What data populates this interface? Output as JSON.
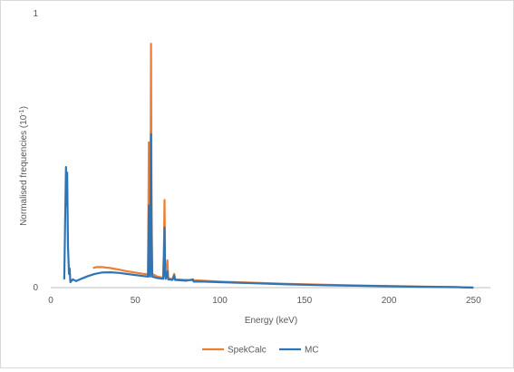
{
  "chart_data": {
    "type": "line",
    "title": "",
    "xlabel": "Energy (keV)",
    "ylabel": "Normalised frequencies (10",
    "ylabel_sup": "-1",
    "ylabel_suffix": ")",
    "xlim": [
      0,
      260
    ],
    "ylim": [
      0,
      1
    ],
    "xticks": [
      0,
      50,
      100,
      150,
      200,
      250
    ],
    "yticks": [
      0,
      1
    ],
    "grid": false,
    "legend_position": "bottom",
    "series": [
      {
        "name": "SpekCalc",
        "color": "#ed7d31",
        "points": [
          [
            25,
            0.072
          ],
          [
            27,
            0.075
          ],
          [
            30,
            0.075
          ],
          [
            35,
            0.072
          ],
          [
            40,
            0.066
          ],
          [
            45,
            0.06
          ],
          [
            50,
            0.055
          ],
          [
            55,
            0.05
          ],
          [
            57.5,
            0.048
          ],
          [
            57.8,
            0.3
          ],
          [
            58,
            0.53
          ],
          [
            58.3,
            0.2
          ],
          [
            58.7,
            0.05
          ],
          [
            59.0,
            0.4
          ],
          [
            59.3,
            0.89
          ],
          [
            59.6,
            0.3
          ],
          [
            60,
            0.05
          ],
          [
            63,
            0.04
          ],
          [
            66.5,
            0.036
          ],
          [
            67,
            0.18
          ],
          [
            67.3,
            0.32
          ],
          [
            67.6,
            0.08
          ],
          [
            68,
            0.035
          ],
          [
            69,
            0.1
          ],
          [
            69.4,
            0.035
          ],
          [
            72,
            0.03
          ],
          [
            73,
            0.05
          ],
          [
            73.5,
            0.03
          ],
          [
            80,
            0.028
          ],
          [
            90,
            0.025
          ],
          [
            100,
            0.022
          ],
          [
            120,
            0.018
          ],
          [
            140,
            0.014
          ],
          [
            160,
            0.011
          ],
          [
            180,
            0.008
          ],
          [
            200,
            0.006
          ],
          [
            220,
            0.004
          ],
          [
            240,
            0.002
          ],
          [
            250,
            0.0
          ]
        ]
      },
      {
        "name": "MC",
        "color": "#2e75b6",
        "points": [
          [
            8,
            0.03
          ],
          [
            8.5,
            0.25
          ],
          [
            9,
            0.44
          ],
          [
            9.3,
            0.3
          ],
          [
            9.7,
            0.42
          ],
          [
            10.2,
            0.15
          ],
          [
            10.8,
            0.05
          ],
          [
            11.2,
            0.07
          ],
          [
            11.6,
            0.02
          ],
          [
            13,
            0.03
          ],
          [
            15,
            0.024
          ],
          [
            18,
            0.032
          ],
          [
            22,
            0.042
          ],
          [
            26,
            0.05
          ],
          [
            30,
            0.055
          ],
          [
            35,
            0.056
          ],
          [
            40,
            0.054
          ],
          [
            45,
            0.05
          ],
          [
            50,
            0.046
          ],
          [
            55,
            0.042
          ],
          [
            57.5,
            0.04
          ],
          [
            57.8,
            0.2
          ],
          [
            58,
            0.3
          ],
          [
            58.3,
            0.12
          ],
          [
            58.7,
            0.04
          ],
          [
            59.0,
            0.3
          ],
          [
            59.3,
            0.56
          ],
          [
            59.6,
            0.2
          ],
          [
            60,
            0.04
          ],
          [
            63,
            0.035
          ],
          [
            66.5,
            0.032
          ],
          [
            67,
            0.12
          ],
          [
            67.3,
            0.22
          ],
          [
            67.6,
            0.05
          ],
          [
            68,
            0.032
          ],
          [
            69,
            0.06
          ],
          [
            69.4,
            0.03
          ],
          [
            72,
            0.028
          ],
          [
            73,
            0.045
          ],
          [
            73.5,
            0.028
          ],
          [
            80,
            0.025
          ],
          [
            84,
            0.03
          ],
          [
            84.5,
            0.022
          ],
          [
            90,
            0.022
          ],
          [
            100,
            0.02
          ],
          [
            120,
            0.016
          ],
          [
            140,
            0.012
          ],
          [
            160,
            0.009
          ],
          [
            180,
            0.007
          ],
          [
            200,
            0.005
          ],
          [
            220,
            0.003
          ],
          [
            240,
            0.0015
          ],
          [
            250,
            0.0
          ]
        ]
      }
    ]
  }
}
